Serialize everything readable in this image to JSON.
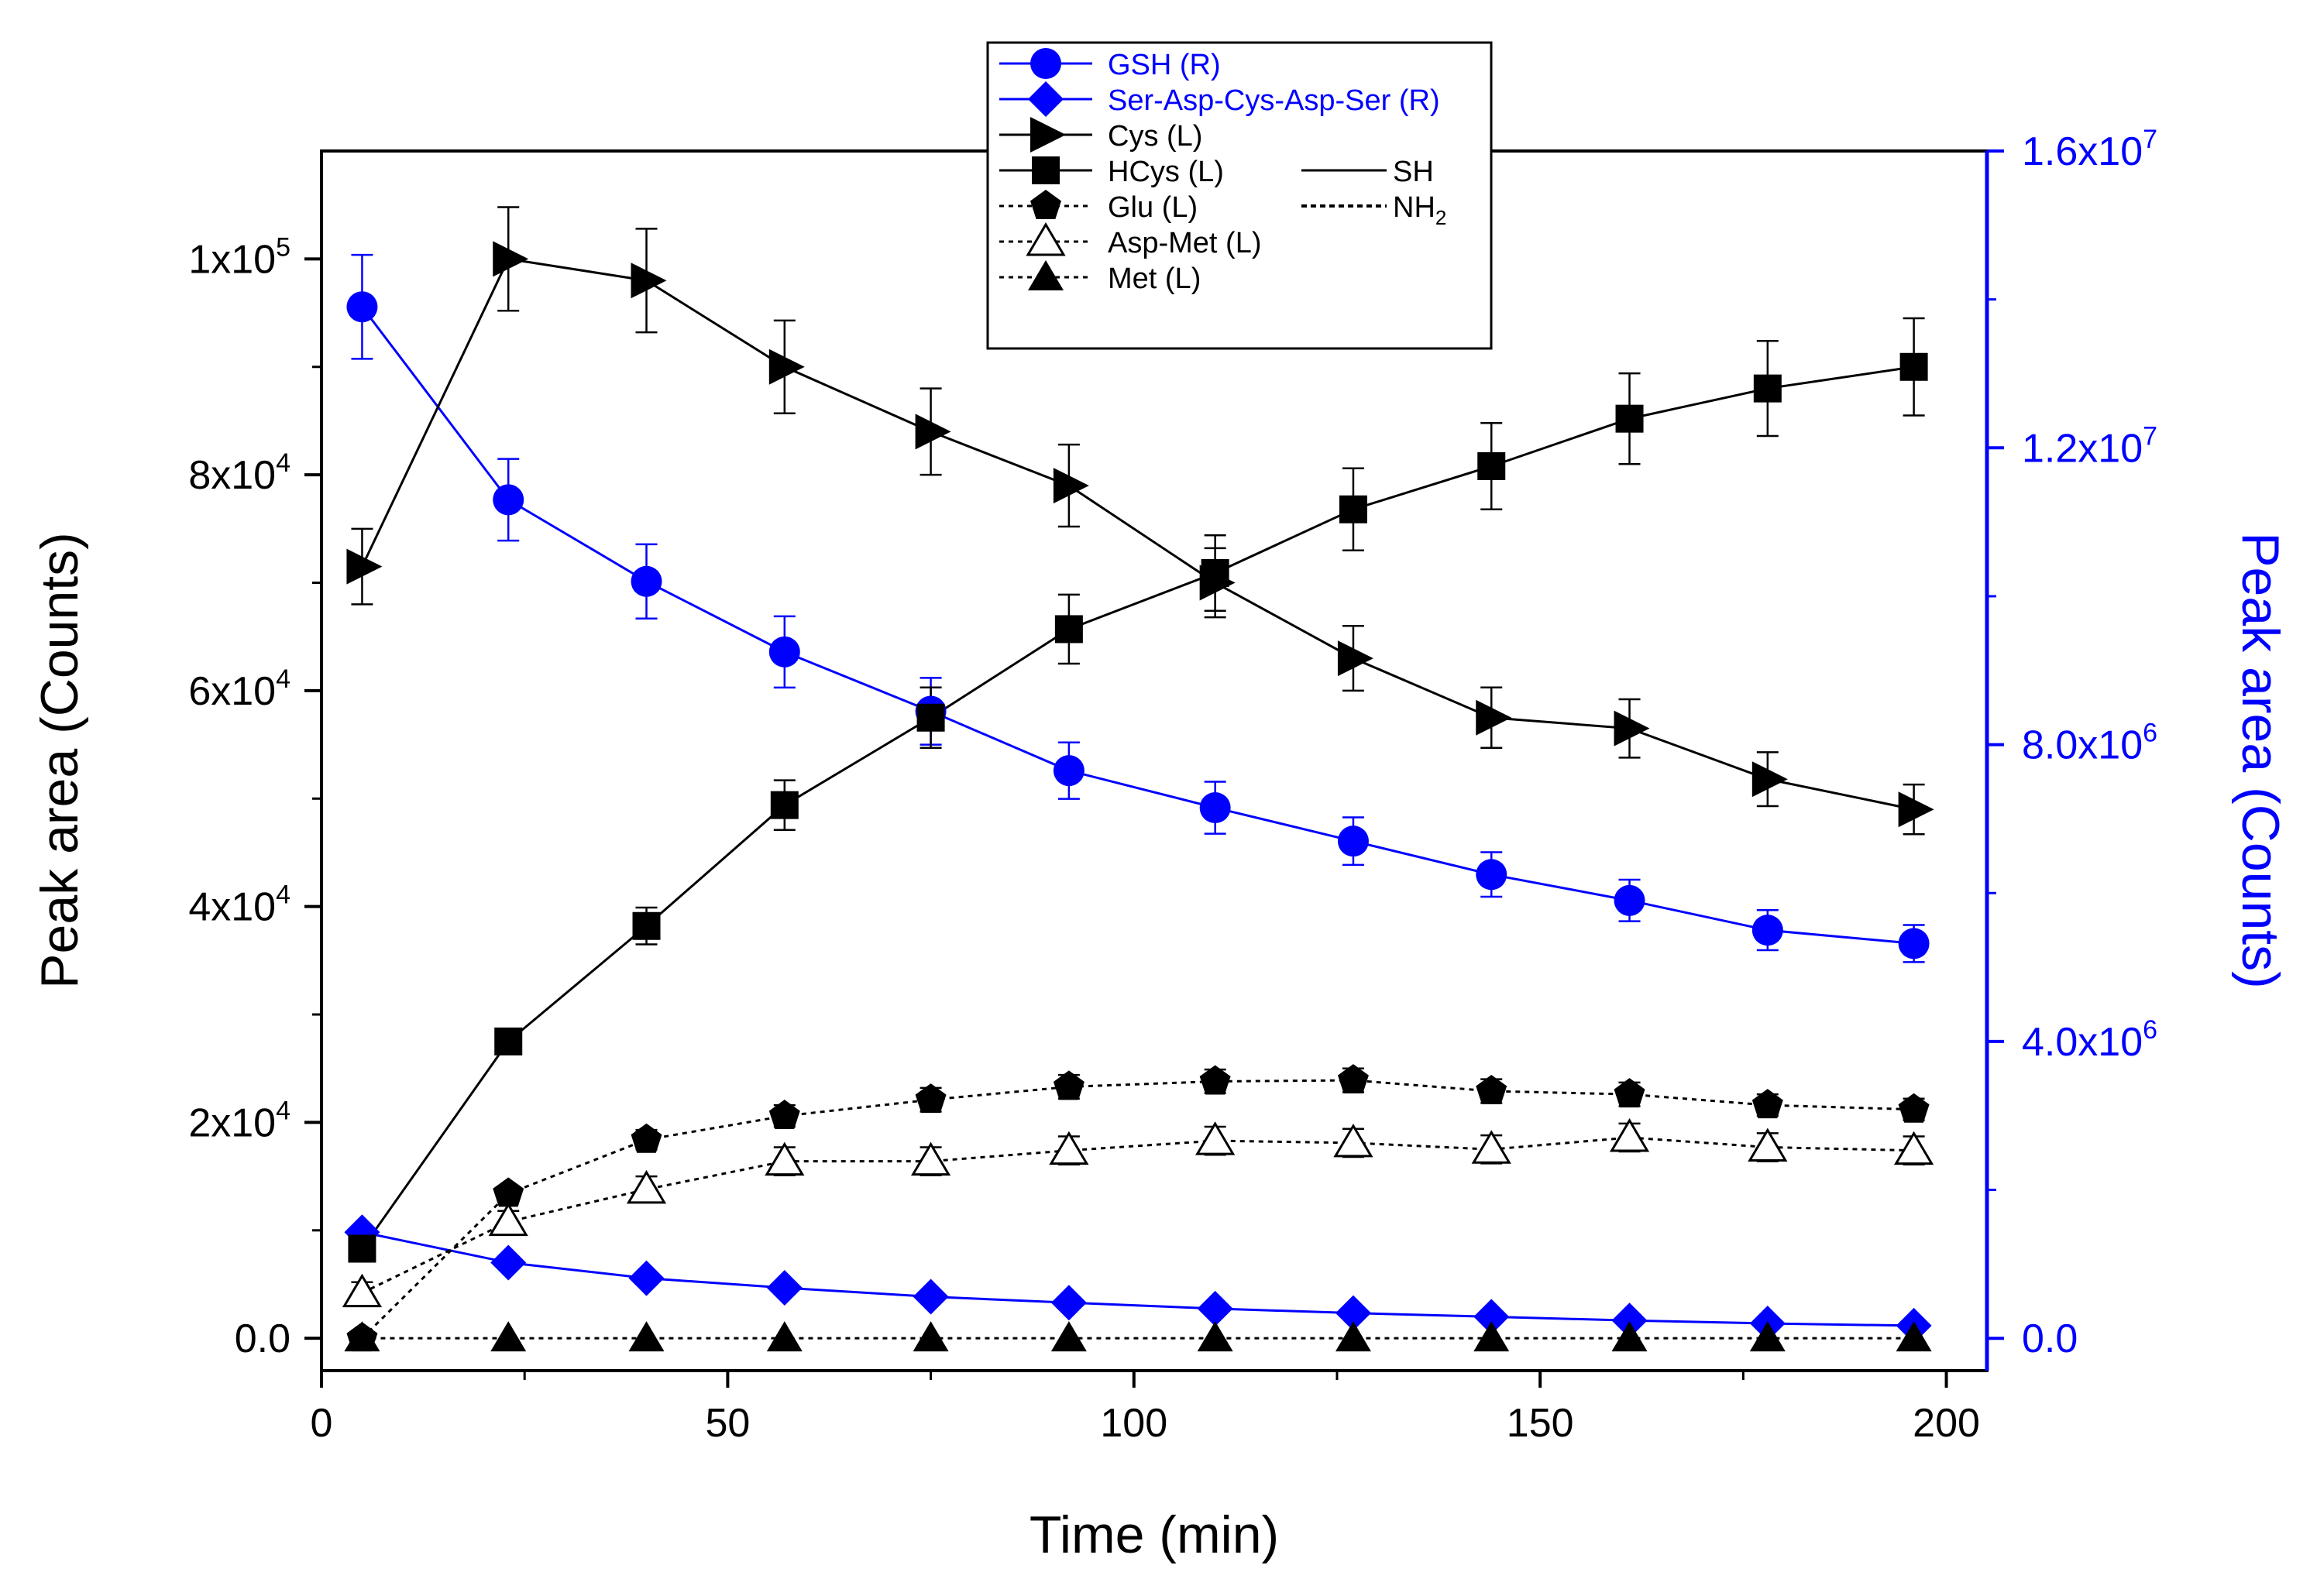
{
  "chart_data": {
    "type": "line",
    "title": "",
    "xlabel": "Time (min)",
    "ylabel_left": "Peak area (Counts)",
    "ylabel_right": "Peak area (Counts)",
    "xlim": [
      0,
      205
    ],
    "ylim_left": [
      -3000,
      110000
    ],
    "ylim_right": [
      -436000,
      16000000
    ],
    "x_ticks": [
      "0",
      "50",
      "100",
      "150",
      "200"
    ],
    "x_tick_values": [
      0,
      50,
      100,
      150,
      200
    ],
    "y_left_ticks": [
      {
        "value": 0,
        "base": "0.0",
        "exp": ""
      },
      {
        "value": 20000,
        "base": "2x10",
        "exp": "4"
      },
      {
        "value": 40000,
        "base": "4x10",
        "exp": "4"
      },
      {
        "value": 60000,
        "base": "6x10",
        "exp": "4"
      },
      {
        "value": 80000,
        "base": "8x10",
        "exp": "4"
      },
      {
        "value": 100000,
        "base": "1x10",
        "exp": "5"
      }
    ],
    "y_right_ticks": [
      {
        "value": 0,
        "base": "0.0",
        "exp": ""
      },
      {
        "value": 4000000,
        "base": "4.0x10",
        "exp": "6"
      },
      {
        "value": 8000000,
        "base": "8.0x10",
        "exp": "6"
      },
      {
        "value": 12000000,
        "base": "1.2x10",
        "exp": "7"
      },
      {
        "value": 16000000,
        "base": "1.6x10",
        "exp": "7"
      }
    ],
    "colors": {
      "left": "#000000",
      "right": "#0000ff"
    },
    "x": [
      5,
      23,
      40,
      57,
      75,
      92,
      110,
      127,
      144,
      161,
      178,
      196
    ],
    "series": [
      {
        "name": "GSH (R)",
        "axis": "right",
        "marker": "circle",
        "line": "solid",
        "color": "#0000ff",
        "values": [
          13900000,
          11300000,
          10200000,
          9250000,
          8450000,
          7650000,
          7150000,
          6700000,
          6250000,
          5900000,
          5500000,
          5320000
        ],
        "errors": [
          700000,
          550000,
          500000,
          480000,
          450000,
          380000,
          350000,
          320000,
          300000,
          280000,
          270000,
          250000
        ]
      },
      {
        "name": "Ser-Asp-Cys-Asp-Ser (R)",
        "axis": "right",
        "marker": "diamond",
        "line": "solid",
        "color": "#0000ff",
        "values": [
          1430000,
          1020000,
          810000,
          680000,
          560000,
          480000,
          400000,
          340000,
          290000,
          240000,
          200000,
          170000
        ],
        "errors": [
          0,
          0,
          0,
          0,
          0,
          0,
          0,
          0,
          0,
          0,
          0,
          0
        ]
      },
      {
        "name": "Cys (L)",
        "axis": "left",
        "marker": "triangle-right",
        "line": "solid",
        "color": "#000000",
        "values": [
          71500,
          100000,
          98000,
          90000,
          84000,
          79000,
          70000,
          63000,
          57500,
          56500,
          51800,
          49000
        ],
        "errors": [
          3500,
          4800,
          4800,
          4300,
          4000,
          3800,
          3200,
          3000,
          2800,
          2700,
          2500,
          2300
        ]
      },
      {
        "name": "HCys (L)",
        "axis": "left",
        "marker": "square",
        "line": "solid",
        "color": "#000000",
        "values": [
          8300,
          27500,
          38200,
          49400,
          57500,
          65700,
          70900,
          76800,
          80800,
          85200,
          88000,
          90000
        ],
        "errors": [
          700,
          1000,
          1700,
          2300,
          2800,
          3200,
          3500,
          3800,
          4000,
          4200,
          4400,
          4500
        ]
      },
      {
        "name": "Glu (L)",
        "axis": "left",
        "marker": "pentagon",
        "line": "dotted",
        "color": "#000000",
        "values": [
          0,
          13400,
          18400,
          20600,
          22100,
          23300,
          23800,
          23900,
          22900,
          22600,
          21600,
          21200
        ],
        "errors": [
          0,
          700,
          900,
          1000,
          1100,
          1100,
          1100,
          1100,
          1100,
          1100,
          1000,
          1000
        ]
      },
      {
        "name": "Asp-Met (L)",
        "axis": "left",
        "marker": "triangle-open",
        "line": "dotted",
        "color": "#000000",
        "values": [
          4200,
          10800,
          13800,
          16400,
          16400,
          17400,
          18300,
          18100,
          17500,
          18600,
          17700,
          17400
        ],
        "errors": [
          1000,
          1000,
          1200,
          1300,
          1300,
          1300,
          1300,
          1300,
          1300,
          1300,
          1300,
          1300
        ]
      },
      {
        "name": "Met (L)",
        "axis": "left",
        "marker": "triangle-filled",
        "line": "dotted",
        "color": "#000000",
        "values": [
          0,
          0,
          0,
          0,
          0,
          0,
          0,
          0,
          0,
          0,
          0,
          0
        ],
        "errors": [
          0,
          0,
          0,
          0,
          0,
          0,
          0,
          0,
          0,
          0,
          0,
          0
        ]
      }
    ],
    "legend": {
      "entries": [
        "GSH (R)",
        "Ser-Asp-Cys-Asp-Ser (R)",
        "Cys (L)",
        "HCys (L)",
        "Glu (L)",
        "Asp-Met (L)",
        "Met (L)"
      ],
      "line_key": [
        {
          "style": "solid",
          "label": "SH",
          "sub": ""
        },
        {
          "style": "dotted",
          "label": "NH",
          "sub": "2"
        }
      ],
      "placement": "top-center"
    }
  }
}
